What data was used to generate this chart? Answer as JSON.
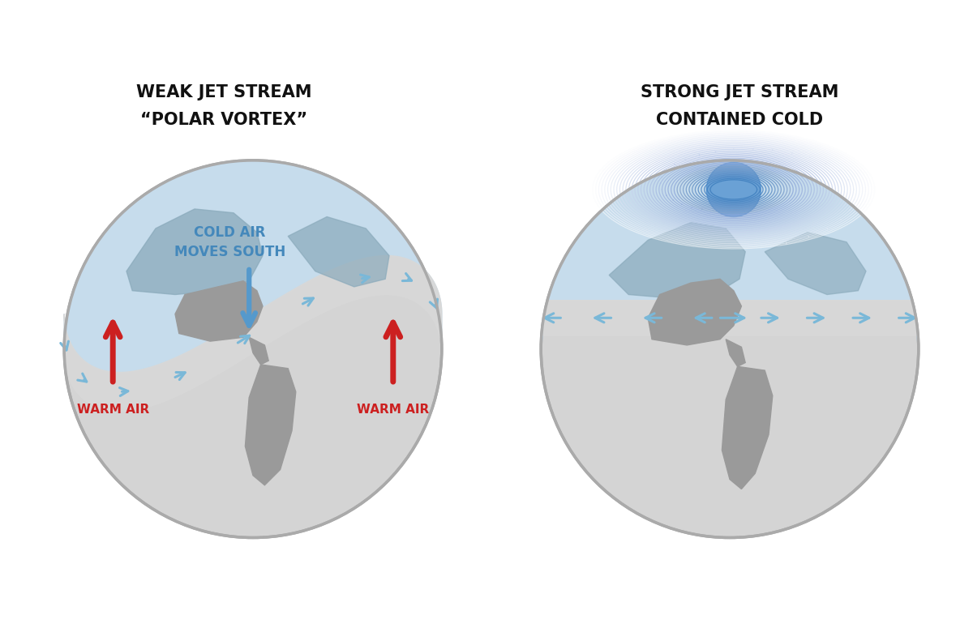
{
  "bg_color": "#ffffff",
  "globe_color": "#d4d4d4",
  "globe_edge_color": "#aaaaaa",
  "cold_color": "#c5ddef",
  "cold_color2": "#9ac4dd",
  "jet_band_color": "#d8d8d8",
  "arrow_blue": "#7ab8d8",
  "arrow_red": "#cc2020",
  "land_color": "#9a9a9a",
  "land_color_cold": "#8aaabb",
  "title1_line1": "WEAK JET STREAM",
  "title1_line2": "“POLAR VORTEX”",
  "title2_line1": "STRONG JET STREAM",
  "title2_line2": "CONTAINED COLD",
  "label_cold": "COLD AIR\nMOVES SOUTH",
  "label_warm1": "WARM AIR",
  "label_warm2": "WARM AIR",
  "text_color_title": "#111111",
  "text_color_cold": "#4488bb",
  "text_color_warm": "#cc2020"
}
